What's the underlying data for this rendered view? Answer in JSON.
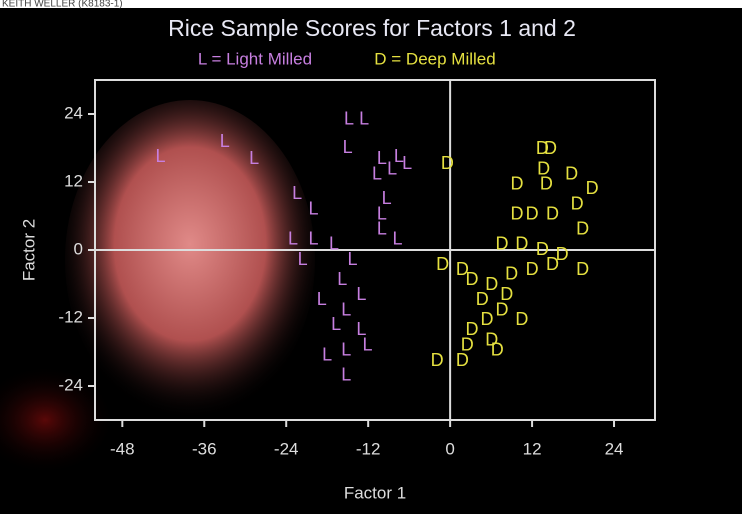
{
  "credit": "KEITH WELLER (K8183-1)",
  "chart_data": {
    "type": "scatter",
    "title": "Rice Sample Scores for Factors 1 and 2",
    "x_label": "Factor 1",
    "y_label": "Factor 2",
    "xlim": [
      -52,
      30
    ],
    "ylim": [
      -30,
      30
    ],
    "xticks": [
      -48,
      -36,
      -24,
      -12,
      0,
      12,
      24
    ],
    "yticks": [
      -24,
      -12,
      0,
      12,
      24
    ],
    "zero_lines": true,
    "series": [
      {
        "name": "L = Light Milled",
        "marker": "L",
        "color": "#c77fe0",
        "x": [
          -42.4,
          -33,
          -28.7,
          -14.8,
          -12.6,
          -15,
          -10,
          -7.5,
          -10.7,
          -9.3,
          -10,
          -7.7,
          -22.4,
          -23,
          -20,
          -17,
          -21.6,
          -14.3,
          -15.8,
          -13,
          -18.8,
          -15.2,
          -16.7,
          -13,
          -18,
          -15.2,
          -15.2,
          -12.1,
          -8.5,
          -6.3,
          -10,
          -20
        ],
        "y": [
          16.4,
          19,
          16,
          23,
          23,
          18,
          16,
          16.4,
          13.3,
          9,
          3.6,
          1.8,
          9.8,
          1.8,
          1.8,
          0.9,
          -1.8,
          -1.8,
          -5.3,
          -8,
          -8.9,
          -10.7,
          -13.3,
          -14.2,
          -18.7,
          -17.8,
          -22.2,
          -16.9,
          14.2,
          15.1,
          6.2,
          7.1
        ]
      },
      {
        "name": "D = Deep Milled",
        "marker": "D",
        "color": "#e5e040",
        "x": [
          -0.4,
          13.5,
          14.7,
          13.7,
          14.1,
          9.8,
          17.8,
          20.8,
          18.6,
          9.8,
          12,
          15,
          19.4,
          7.6,
          10.5,
          13.5,
          16.4,
          19.4,
          -1.1,
          1.8,
          3.2,
          6.1,
          9,
          12,
          4.7,
          7.6,
          10.5,
          5.4,
          3.2,
          6.1,
          2.5,
          6.9,
          -1.9,
          1.8,
          8.3,
          15
        ],
        "y": [
          15.1,
          17.8,
          17.8,
          14.2,
          11.5,
          11.5,
          13.3,
          10.7,
          8,
          6.2,
          6.2,
          6.2,
          3.6,
          0.9,
          0.9,
          0,
          -0.9,
          -3.6,
          -2.7,
          -3.6,
          -5.3,
          -6.2,
          -4.4,
          -3.6,
          -8.9,
          -10.7,
          -12.4,
          -12.4,
          -14.2,
          -16,
          -16.9,
          -17.8,
          -19.6,
          -19.6,
          -8,
          -2.7
        ]
      }
    ]
  }
}
